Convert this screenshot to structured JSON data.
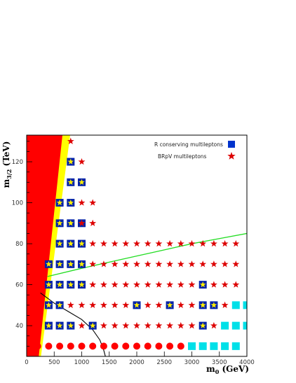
{
  "chart_data": {
    "type": "scatter",
    "title": "",
    "xlabel_main": "m",
    "xlabel_sub": "0",
    "xlabel_unit": " (GeV)",
    "ylabel_main": "m",
    "ylabel_sub": "3/2",
    "ylabel_unit": " (TeV)",
    "xlim": [
      0,
      4000
    ],
    "ylim": [
      25,
      133
    ],
    "x_ticks": [
      0,
      500,
      1000,
      1500,
      2000,
      2500,
      3000,
      3500,
      4000
    ],
    "y_ticks": [
      40,
      60,
      80,
      100,
      120
    ],
    "legend_placement": "top-right",
    "legend": [
      {
        "label": "R conserving multileptons",
        "marker": "blue-square",
        "color": "#0033cc"
      },
      {
        "label": "BRpV multileptons",
        "marker": "red-star",
        "color": "#dd0000"
      }
    ],
    "colors": {
      "excluded_red": "#ff0000",
      "excluded_yellow": "#ffff00",
      "blue_square": "#0022aa",
      "inner_star": "#ffee00",
      "red_star": "#dd0000",
      "red_circle": "#ff0000",
      "cyan_square": "#00e0e8",
      "green_curve": "#22dd22",
      "black_curve": "#000000"
    },
    "series": [
      {
        "name": "R conserving multileptons",
        "marker": "blue-square-with-star",
        "points": [
          [
            800,
            120
          ],
          [
            800,
            110
          ],
          [
            1000,
            110
          ],
          [
            600,
            100
          ],
          [
            800,
            100
          ],
          [
            600,
            90
          ],
          [
            800,
            90
          ],
          [
            1000,
            90
          ],
          [
            600,
            80
          ],
          [
            800,
            80
          ],
          [
            1000,
            80
          ],
          [
            400,
            70
          ],
          [
            600,
            70
          ],
          [
            800,
            70
          ],
          [
            1000,
            70
          ],
          [
            400,
            60
          ],
          [
            600,
            60
          ],
          [
            800,
            60
          ],
          [
            1000,
            60
          ],
          [
            3200,
            60
          ],
          [
            400,
            50
          ],
          [
            600,
            50
          ],
          [
            2000,
            50
          ],
          [
            2600,
            50
          ],
          [
            3200,
            50
          ],
          [
            3400,
            50
          ],
          [
            400,
            40
          ],
          [
            600,
            40
          ],
          [
            800,
            40
          ],
          [
            1200,
            40
          ],
          [
            3200,
            40
          ]
        ]
      },
      {
        "name": "BRpV multileptons",
        "marker": "red-star",
        "points": [
          [
            800,
            130
          ],
          [
            1000,
            120
          ],
          [
            1000,
            100
          ],
          [
            1200,
            100
          ],
          [
            1000,
            90
          ],
          [
            1200,
            90
          ],
          [
            1200,
            80
          ],
          [
            1400,
            80
          ],
          [
            1600,
            80
          ],
          [
            1800,
            80
          ],
          [
            2000,
            80
          ],
          [
            2200,
            80
          ],
          [
            2400,
            80
          ],
          [
            2600,
            80
          ],
          [
            2800,
            80
          ],
          [
            3000,
            80
          ],
          [
            3200,
            80
          ],
          [
            3400,
            80
          ],
          [
            3600,
            80
          ],
          [
            3800,
            80
          ],
          [
            1200,
            70
          ],
          [
            1400,
            70
          ],
          [
            1600,
            70
          ],
          [
            1800,
            70
          ],
          [
            2000,
            70
          ],
          [
            2200,
            70
          ],
          [
            2400,
            70
          ],
          [
            2600,
            70
          ],
          [
            2800,
            70
          ],
          [
            3000,
            70
          ],
          [
            3200,
            70
          ],
          [
            3400,
            70
          ],
          [
            3600,
            70
          ],
          [
            3800,
            70
          ],
          [
            1200,
            60
          ],
          [
            1400,
            60
          ],
          [
            1600,
            60
          ],
          [
            1800,
            60
          ],
          [
            2000,
            60
          ],
          [
            2200,
            60
          ],
          [
            2400,
            60
          ],
          [
            2600,
            60
          ],
          [
            2800,
            60
          ],
          [
            3000,
            60
          ],
          [
            3400,
            60
          ],
          [
            3600,
            60
          ],
          [
            3800,
            60
          ],
          [
            800,
            50
          ],
          [
            1000,
            50
          ],
          [
            1200,
            50
          ],
          [
            1400,
            50
          ],
          [
            1600,
            50
          ],
          [
            1800,
            50
          ],
          [
            2200,
            50
          ],
          [
            2400,
            50
          ],
          [
            2800,
            50
          ],
          [
            3000,
            50
          ],
          [
            3600,
            50
          ],
          [
            1000,
            40
          ],
          [
            1400,
            40
          ],
          [
            1600,
            40
          ],
          [
            1800,
            40
          ],
          [
            2000,
            40
          ],
          [
            2200,
            40
          ],
          [
            2400,
            40
          ],
          [
            2600,
            40
          ],
          [
            2800,
            40
          ],
          [
            3000,
            40
          ],
          [
            3400,
            40
          ]
        ]
      },
      {
        "marker": "red-circle",
        "points": [
          [
            200,
            30
          ],
          [
            400,
            30
          ],
          [
            600,
            30
          ],
          [
            800,
            30
          ],
          [
            1000,
            30
          ],
          [
            1200,
            30
          ],
          [
            1400,
            30
          ],
          [
            1600,
            30
          ],
          [
            1800,
            30
          ],
          [
            2000,
            30
          ],
          [
            2200,
            30
          ],
          [
            2400,
            30
          ],
          [
            2600,
            30
          ],
          [
            2800,
            30
          ]
        ]
      },
      {
        "marker": "cyan-square",
        "points": [
          [
            3000,
            30
          ],
          [
            3200,
            30
          ],
          [
            3400,
            30
          ],
          [
            3600,
            30
          ],
          [
            3800,
            30
          ],
          [
            3600,
            40
          ],
          [
            3800,
            40
          ],
          [
            4000,
            40
          ],
          [
            3800,
            50
          ],
          [
            4000,
            50
          ]
        ]
      }
    ],
    "regions": {
      "red": [
        [
          0,
          25
        ],
        [
          220,
          25
        ],
        [
          650,
          133
        ],
        [
          0,
          133
        ]
      ],
      "yellow": [
        [
          130,
          25
        ],
        [
          260,
          25
        ],
        [
          790,
          133
        ],
        [
          650,
          133
        ]
      ]
    },
    "curves": {
      "green": [
        [
          380,
          64
        ],
        [
          1000,
          68
        ],
        [
          1500,
          71
        ],
        [
          2000,
          74
        ],
        [
          2500,
          77
        ],
        [
          3000,
          80
        ],
        [
          3500,
          82.5
        ],
        [
          4000,
          85
        ]
      ],
      "black": [
        [
          250,
          56
        ],
        [
          500,
          51
        ],
        [
          750,
          47
        ],
        [
          1000,
          43
        ],
        [
          1200,
          38
        ],
        [
          1330,
          33
        ],
        [
          1400,
          28
        ],
        [
          1430,
          25
        ]
      ]
    }
  }
}
